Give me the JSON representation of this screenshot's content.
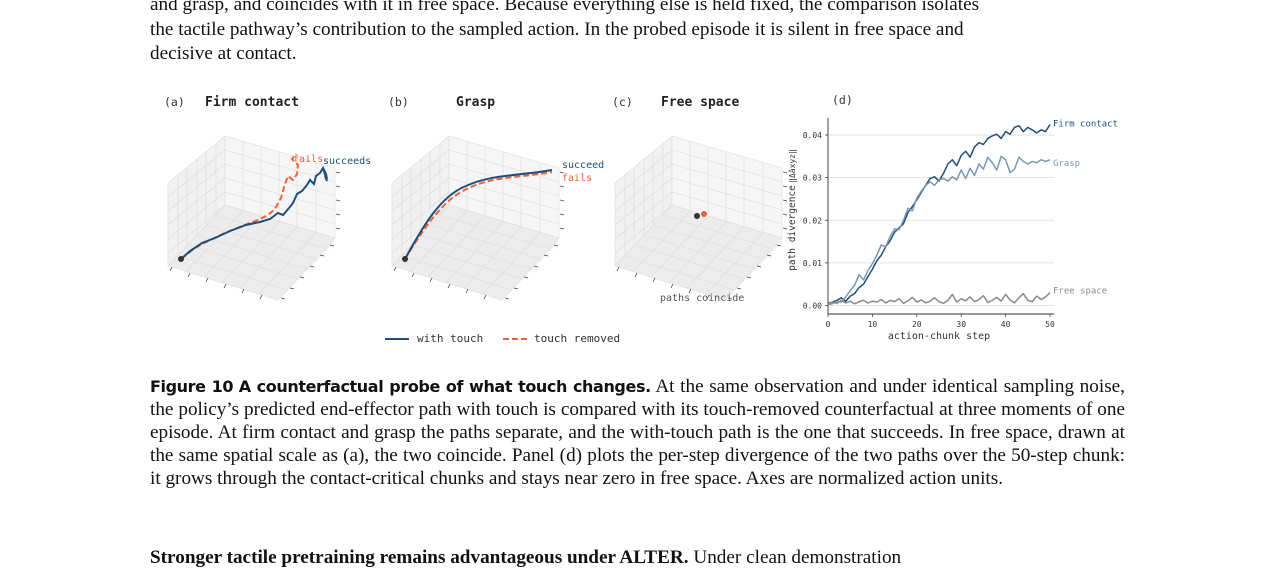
{
  "top_paragraph": [
    "and grasp, and coincides with it in free space. Because everything else is held fixed, the comparison isolates",
    "the tactile pathway’s contribution to the sampled action. In the probed episode it is silent in free space and",
    "decisive at contact."
  ],
  "figure": {
    "panels": [
      {
        "letter": "(a)",
        "title": "Firm contact",
        "success_label": "succeeds",
        "fail_label": "fails"
      },
      {
        "letter": "(b)",
        "title": "Grasp",
        "success_label": "succeed",
        "fail_label": "fails"
      },
      {
        "letter": "(c)",
        "title": "Free space",
        "note": "paths coincide"
      }
    ],
    "legend": {
      "with_touch": "with touch",
      "touch_removed": "touch removed"
    },
    "colors": {
      "with_touch": "#1f4e7a",
      "touch_removed": "#e8643a",
      "grasp": "#7a97b6",
      "free_space": "#8a8a8a",
      "start_dot": "#333333"
    }
  },
  "chart_data": {
    "type": "line",
    "panel_letter": "(d)",
    "xlabel": "action-chunk step",
    "ylabel": "path divergence ‖Δâ_xyz‖",
    "ylabel_main": "path divergence",
    "ylabel_sym": "‖Δâxyz‖",
    "xlim": [
      0,
      50
    ],
    "ylim": [
      -0.002,
      0.044
    ],
    "xticks": [
      "0",
      "10",
      "20",
      "30",
      "40",
      "50"
    ],
    "yticks": [
      "0.00",
      "0.01",
      "0.02",
      "0.03",
      "0.04"
    ],
    "x": [
      0,
      1,
      2,
      3,
      4,
      5,
      6,
      7,
      8,
      9,
      10,
      11,
      12,
      13,
      14,
      15,
      16,
      17,
      18,
      19,
      20,
      21,
      22,
      23,
      24,
      25,
      26,
      27,
      28,
      29,
      30,
      31,
      32,
      33,
      34,
      35,
      36,
      37,
      38,
      39,
      40,
      41,
      42,
      43,
      44,
      45,
      46,
      47,
      48,
      49,
      50
    ],
    "series": [
      {
        "name": "Firm contact",
        "color": "#1f4e7a",
        "values": [
          0.0005,
          0.0008,
          0.0012,
          0.0018,
          0.001,
          0.0022,
          0.0028,
          0.0042,
          0.005,
          0.0068,
          0.0085,
          0.0105,
          0.0118,
          0.0138,
          0.0152,
          0.0172,
          0.0182,
          0.0192,
          0.0218,
          0.0232,
          0.0248,
          0.0265,
          0.0282,
          0.0298,
          0.0302,
          0.0292,
          0.031,
          0.0332,
          0.0342,
          0.0328,
          0.0352,
          0.0362,
          0.0348,
          0.0372,
          0.0382,
          0.0378,
          0.0392,
          0.0398,
          0.0402,
          0.0392,
          0.0408,
          0.0402,
          0.0418,
          0.0422,
          0.0408,
          0.0418,
          0.0412,
          0.0405,
          0.0412,
          0.0408,
          0.0425
        ]
      },
      {
        "name": "Grasp",
        "color": "#7a97b6",
        "values": [
          0.0002,
          0.0004,
          0.001,
          0.0008,
          0.002,
          0.0035,
          0.0048,
          0.0072,
          0.006,
          0.0082,
          0.0098,
          0.0118,
          0.0142,
          0.0138,
          0.0162,
          0.018,
          0.0178,
          0.02,
          0.0228,
          0.0222,
          0.0252,
          0.0268,
          0.0282,
          0.029,
          0.0282,
          0.0295,
          0.0298,
          0.0292,
          0.0302,
          0.0295,
          0.0318,
          0.0298,
          0.0322,
          0.0305,
          0.0332,
          0.032,
          0.0348,
          0.0335,
          0.0318,
          0.035,
          0.0342,
          0.0312,
          0.032,
          0.0348,
          0.0338,
          0.0332,
          0.0338,
          0.0335,
          0.0342,
          0.0338,
          0.0342
        ]
      },
      {
        "name": "Free space",
        "color": "#8a8a8a",
        "values": [
          0.0003,
          0.0008,
          0.0005,
          0.0012,
          0.0006,
          0.001,
          0.0004,
          0.0009,
          0.0012,
          0.0006,
          0.001,
          0.0008,
          0.0014,
          0.0006,
          0.0012,
          0.0009,
          0.0016,
          0.0005,
          0.0011,
          0.0019,
          0.0008,
          0.0013,
          0.0006,
          0.001,
          0.0018,
          0.0009,
          0.0005,
          0.0012,
          0.0026,
          0.0008,
          0.0016,
          0.0011,
          0.002,
          0.0009,
          0.0014,
          0.0023,
          0.0007,
          0.0012,
          0.0019,
          0.001,
          0.0026,
          0.0013,
          0.0006,
          0.0018,
          0.0028,
          0.0012,
          0.0009,
          0.0022,
          0.0014,
          0.002,
          0.003
        ]
      }
    ]
  },
  "caption": {
    "label": "Figure 10",
    "title": "A counterfactual probe of what touch changes.",
    "text": "At the same observation and under identical sampling noise, the policy’s predicted end-effector path with touch is compared with its touch-removed counterfactual at three moments of one episode. At firm contact and grasp the paths separate, and the with-touch path is the one that succeeds. In free space, drawn at the same spatial scale as (a), the two coincide. Panel (d) plots the per-step divergence of the two paths over the 50-step chunk: it grows through the contact-critical chunks and stays near zero in free space. Axes are normalized action units."
  },
  "section": {
    "heading": "Stronger tactile pretraining remains advantageous under ALTER.",
    "text": "Under clean demonstration"
  }
}
